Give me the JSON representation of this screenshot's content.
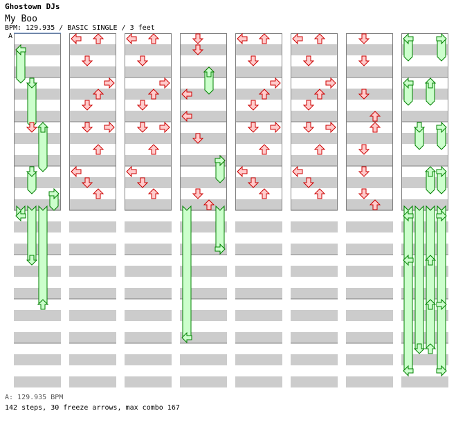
{
  "song": {
    "artist": "Ghostown DJs",
    "title": "My Boo",
    "bpm_line": "BPM: 129.935 / BASIC SINGLE / 3 feet",
    "section_marker": "A"
  },
  "footer": {
    "bpm_change": "A: 129.935 BPM",
    "stats": "142 steps, 30 freeze arrows, max combo 167"
  },
  "colors": {
    "stripe": "#cccccc",
    "border": "#808080",
    "arrow_fill": "#ffcccc",
    "arrow_stroke": "#cc0000",
    "freeze_fill": "#ccffcc",
    "freeze_stroke": "#008000"
  },
  "stepchart": {
    "columns": 8,
    "measures_per_column": 8,
    "arrows_per_measure": 4,
    "arrows": [
      {
        "c": 0,
        "l": 0,
        "t": 0.75
      },
      {
        "c": 0,
        "l": 1,
        "t": 4.25
      },
      {
        "c": 0,
        "l": 2,
        "t": 8.25
      },
      {
        "c": 0,
        "l": 1,
        "t": 12.25
      },
      {
        "c": 0,
        "l": 3,
        "t": 14.75
      },
      {
        "c": 0,
        "l": 0,
        "t": 16.25
      },
      {
        "c": 0,
        "l": 1,
        "t": 20.25
      },
      {
        "c": 0,
        "l": 2,
        "t": 24.25
      },
      {
        "c": 0,
        "l": 3,
        "t": 26.25
      },
      {
        "c": 0,
        "l": 3,
        "t": 26.75
      },
      {
        "c": 0,
        "l": 1,
        "t": 29.25
      },
      {
        "c": 1,
        "l": 0,
        "t": 0.25
      },
      {
        "c": 1,
        "l": 2,
        "t": 0.25
      },
      {
        "c": 1,
        "l": 1,
        "t": 1.25
      },
      {
        "c": 1,
        "l": 3,
        "t": 2.25
      },
      {
        "c": 1,
        "l": 2,
        "t": 2.75
      },
      {
        "c": 1,
        "l": 1,
        "t": 3.25
      },
      {
        "c": 1,
        "l": 1,
        "t": 4.25
      },
      {
        "c": 1,
        "l": 3,
        "t": 4.25
      },
      {
        "c": 1,
        "l": 2,
        "t": 5.25
      },
      {
        "c": 1,
        "l": 0,
        "t": 6.25
      },
      {
        "c": 1,
        "l": 1,
        "t": 6.75
      },
      {
        "c": 1,
        "l": 2,
        "t": 7.25
      },
      {
        "c": 1,
        "l": 0,
        "t": 8.25
      },
      {
        "c": 1,
        "l": 2,
        "t": 8.25
      },
      {
        "c": 1,
        "l": 1,
        "t": 9.25
      },
      {
        "c": 1,
        "l": 3,
        "t": 10.25
      },
      {
        "c": 1,
        "l": 2,
        "t": 10.75
      },
      {
        "c": 1,
        "l": 1,
        "t": 11.25
      },
      {
        "c": 1,
        "l": 0,
        "t": 12.25
      },
      {
        "c": 1,
        "l": 1,
        "t": 12.25
      },
      {
        "c": 1,
        "l": 3,
        "t": 13.25
      },
      {
        "c": 1,
        "l": 0,
        "t": 14.25
      },
      {
        "c": 1,
        "l": 1,
        "t": 14.75
      },
      {
        "c": 1,
        "l": 3,
        "t": 15.75
      },
      {
        "c": 2,
        "l": 0,
        "t": 0.25
      },
      {
        "c": 2,
        "l": 2,
        "t": 0.25
      },
      {
        "c": 2,
        "l": 1,
        "t": 1.25
      },
      {
        "c": 2,
        "l": 3,
        "t": 2.25
      },
      {
        "c": 2,
        "l": 2,
        "t": 2.75
      },
      {
        "c": 2,
        "l": 1,
        "t": 3.25
      },
      {
        "c": 2,
        "l": 1,
        "t": 4.25
      },
      {
        "c": 2,
        "l": 3,
        "t": 4.25
      },
      {
        "c": 2,
        "l": 2,
        "t": 5.25
      },
      {
        "c": 2,
        "l": 0,
        "t": 6.25
      },
      {
        "c": 2,
        "l": 1,
        "t": 6.75
      },
      {
        "c": 2,
        "l": 2,
        "t": 7.25
      },
      {
        "c": 2,
        "l": 0,
        "t": 8.25
      },
      {
        "c": 2,
        "l": 2,
        "t": 8.25
      },
      {
        "c": 2,
        "l": 1,
        "t": 9.25
      },
      {
        "c": 2,
        "l": 3,
        "t": 10.25
      },
      {
        "c": 2,
        "l": 2,
        "t": 10.75
      },
      {
        "c": 2,
        "l": 1,
        "t": 11.25
      },
      {
        "c": 2,
        "l": 0,
        "t": 12.25
      },
      {
        "c": 2,
        "l": 1,
        "t": 12.25
      },
      {
        "c": 2,
        "l": 3,
        "t": 13.25
      },
      {
        "c": 2,
        "l": 0,
        "t": 14.25
      },
      {
        "c": 2,
        "l": 1,
        "t": 14.75
      },
      {
        "c": 2,
        "l": 3,
        "t": 15.75
      },
      {
        "c": 3,
        "l": 1,
        "t": 0.25
      },
      {
        "c": 3,
        "l": 1,
        "t": 0.75
      },
      {
        "c": 3,
        "l": 2,
        "t": 1.75
      },
      {
        "c": 3,
        "l": 0,
        "t": 2.75
      },
      {
        "c": 3,
        "l": 0,
        "t": 3.75
      },
      {
        "c": 3,
        "l": 1,
        "t": 4.75
      },
      {
        "c": 3,
        "l": 3,
        "t": 5.75
      },
      {
        "c": 3,
        "l": 1,
        "t": 7.25
      },
      {
        "c": 3,
        "l": 2,
        "t": 7.75
      },
      {
        "c": 3,
        "l": 0,
        "t": 8.75
      },
      {
        "c": 3,
        "l": 3,
        "t": 9.75
      },
      {
        "c": 3,
        "l": 0,
        "t": 10.75
      },
      {
        "c": 3,
        "l": 1,
        "t": 11.75
      },
      {
        "c": 3,
        "l": 3,
        "t": 12.75
      },
      {
        "c": 3,
        "l": 0,
        "t": 14.25
      },
      {
        "c": 3,
        "l": 1,
        "t": 14.25
      },
      {
        "c": 3,
        "l": 2,
        "t": 14.75
      },
      {
        "c": 3,
        "l": 1,
        "t": 15.75
      },
      {
        "c": 4,
        "l": 0,
        "t": 0.25
      },
      {
        "c": 4,
        "l": 2,
        "t": 0.25
      },
      {
        "c": 4,
        "l": 1,
        "t": 1.25
      },
      {
        "c": 4,
        "l": 3,
        "t": 2.25
      },
      {
        "c": 4,
        "l": 2,
        "t": 2.75
      },
      {
        "c": 4,
        "l": 1,
        "t": 3.25
      },
      {
        "c": 4,
        "l": 1,
        "t": 4.25
      },
      {
        "c": 4,
        "l": 3,
        "t": 4.25
      },
      {
        "c": 4,
        "l": 2,
        "t": 5.25
      },
      {
        "c": 4,
        "l": 0,
        "t": 6.25
      },
      {
        "c": 4,
        "l": 1,
        "t": 6.75
      },
      {
        "c": 4,
        "l": 2,
        "t": 7.25
      },
      {
        "c": 4,
        "l": 0,
        "t": 8.25
      },
      {
        "c": 4,
        "l": 2,
        "t": 8.25
      },
      {
        "c": 4,
        "l": 1,
        "t": 9.25
      },
      {
        "c": 4,
        "l": 3,
        "t": 10.25
      },
      {
        "c": 4,
        "l": 2,
        "t": 10.75
      },
      {
        "c": 4,
        "l": 1,
        "t": 11.25
      },
      {
        "c": 4,
        "l": 0,
        "t": 12.25
      },
      {
        "c": 4,
        "l": 1,
        "t": 12.25
      },
      {
        "c": 4,
        "l": 3,
        "t": 13.25
      },
      {
        "c": 4,
        "l": 0,
        "t": 14.25
      },
      {
        "c": 4,
        "l": 1,
        "t": 14.75
      },
      {
        "c": 4,
        "l": 2,
        "t": 15.25
      },
      {
        "c": 4,
        "l": 3,
        "t": 15.75
      },
      {
        "c": 5,
        "l": 0,
        "t": 0.25
      },
      {
        "c": 5,
        "l": 2,
        "t": 0.25
      },
      {
        "c": 5,
        "l": 1,
        "t": 1.25
      },
      {
        "c": 5,
        "l": 3,
        "t": 2.25
      },
      {
        "c": 5,
        "l": 2,
        "t": 2.75
      },
      {
        "c": 5,
        "l": 1,
        "t": 3.25
      },
      {
        "c": 5,
        "l": 1,
        "t": 4.25
      },
      {
        "c": 5,
        "l": 3,
        "t": 4.25
      },
      {
        "c": 5,
        "l": 2,
        "t": 5.25
      },
      {
        "c": 5,
        "l": 0,
        "t": 6.25
      },
      {
        "c": 5,
        "l": 1,
        "t": 6.75
      },
      {
        "c": 5,
        "l": 2,
        "t": 7.25
      },
      {
        "c": 5,
        "l": 0,
        "t": 8.25
      },
      {
        "c": 5,
        "l": 2,
        "t": 8.25
      },
      {
        "c": 5,
        "l": 1,
        "t": 9.25
      },
      {
        "c": 5,
        "l": 3,
        "t": 10.25
      },
      {
        "c": 5,
        "l": 2,
        "t": 10.75
      },
      {
        "c": 5,
        "l": 1,
        "t": 11.25
      },
      {
        "c": 5,
        "l": 0,
        "t": 12.25
      },
      {
        "c": 5,
        "l": 1,
        "t": 12.25
      },
      {
        "c": 5,
        "l": 3,
        "t": 13.25
      },
      {
        "c": 5,
        "l": 0,
        "t": 14.25
      },
      {
        "c": 5,
        "l": 1,
        "t": 14.75
      },
      {
        "c": 5,
        "l": 2,
        "t": 15.25
      },
      {
        "c": 5,
        "l": 0,
        "t": 15.75
      },
      {
        "c": 6,
        "l": 1,
        "t": 0.25
      },
      {
        "c": 6,
        "l": 1,
        "t": 1.25
      },
      {
        "c": 6,
        "l": 1,
        "t": 2.75
      },
      {
        "c": 6,
        "l": 2,
        "t": 3.75
      },
      {
        "c": 6,
        "l": 2,
        "t": 4.25
      },
      {
        "c": 6,
        "l": 1,
        "t": 5.25
      },
      {
        "c": 6,
        "l": 1,
        "t": 6.25
      },
      {
        "c": 6,
        "l": 1,
        "t": 7.25
      },
      {
        "c": 6,
        "l": 2,
        "t": 7.75
      },
      {
        "c": 6,
        "l": 1,
        "t": 8.25
      },
      {
        "c": 6,
        "l": 1,
        "t": 9.25
      },
      {
        "c": 6,
        "l": 1,
        "t": 10.25
      },
      {
        "c": 6,
        "l": 1,
        "t": 11.25
      },
      {
        "c": 6,
        "l": 2,
        "t": 11.75
      },
      {
        "c": 6,
        "l": 2,
        "t": 12.25
      },
      {
        "c": 6,
        "l": 1,
        "t": 13.25
      },
      {
        "c": 6,
        "l": 3,
        "t": 14.25
      },
      {
        "c": 6,
        "l": 2,
        "t": 14.75
      },
      {
        "c": 6,
        "l": 0,
        "t": 15.75
      }
    ],
    "freezes": [
      {
        "c": 0,
        "l": 0,
        "s": 0.75,
        "e": 2.25
      },
      {
        "c": 0,
        "l": 1,
        "s": 2.25,
        "e": 4.25
      },
      {
        "c": 0,
        "l": 2,
        "s": 4.25,
        "e": 6.25
      },
      {
        "c": 0,
        "l": 1,
        "s": 6.25,
        "e": 7.25
      },
      {
        "c": 0,
        "l": 3,
        "s": 7.25,
        "e": 8.25
      },
      {
        "c": 0,
        "l": 0,
        "s": 8.25,
        "e": 10.25
      },
      {
        "c": 0,
        "l": 1,
        "s": 10.25,
        "e": 12.25
      },
      {
        "c": 0,
        "l": 2,
        "s": 12.25,
        "e": 14.25
      },
      {
        "c": 3,
        "l": 2,
        "s": 1.75,
        "e": 2.75
      },
      {
        "c": 3,
        "l": 3,
        "s": 5.75,
        "e": 6.75
      },
      {
        "c": 3,
        "l": 3,
        "s": 9.75,
        "e": 10.75
      },
      {
        "c": 3,
        "l": 0,
        "s": 13.75,
        "e": 14.75
      },
      {
        "c": 7,
        "l": 0,
        "s": 0.25,
        "e": 1.25
      },
      {
        "c": 7,
        "l": 3,
        "s": 0.25,
        "e": 1.25
      },
      {
        "c": 7,
        "l": 0,
        "s": 2.25,
        "e": 3.25
      },
      {
        "c": 7,
        "l": 2,
        "s": 2.25,
        "e": 3.25
      },
      {
        "c": 7,
        "l": 1,
        "s": 4.25,
        "e": 5.25
      },
      {
        "c": 7,
        "l": 3,
        "s": 4.25,
        "e": 5.25
      },
      {
        "c": 7,
        "l": 2,
        "s": 6.25,
        "e": 7.25
      },
      {
        "c": 7,
        "l": 3,
        "s": 6.25,
        "e": 7.25
      },
      {
        "c": 7,
        "l": 0,
        "s": 8.25,
        "e": 9.25
      },
      {
        "c": 7,
        "l": 3,
        "s": 8.25,
        "e": 9.25
      },
      {
        "c": 7,
        "l": 0,
        "s": 10.25,
        "e": 11.25
      },
      {
        "c": 7,
        "l": 2,
        "s": 10.25,
        "e": 11.25
      },
      {
        "c": 7,
        "l": 2,
        "s": 12.25,
        "e": 13.25
      },
      {
        "c": 7,
        "l": 3,
        "s": 12.25,
        "e": 13.25
      },
      {
        "c": 7,
        "l": 1,
        "s": 14.25,
        "e": 14.75
      },
      {
        "c": 7,
        "l": 2,
        "s": 14.25,
        "e": 14.75
      },
      {
        "c": 7,
        "l": 0,
        "s": 15.25,
        "e": 16
      },
      {
        "c": 7,
        "l": 3,
        "s": 15.25,
        "e": 16
      }
    ]
  }
}
